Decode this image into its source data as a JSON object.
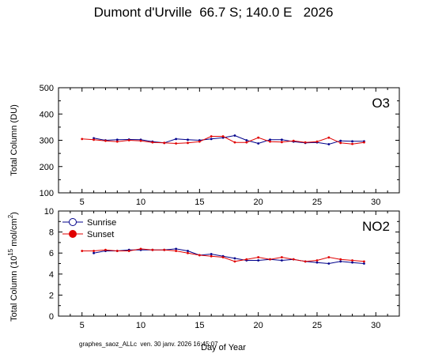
{
  "title": "Dumont d'Urville  66.7 S; 140.0 E   2026",
  "footer": "graphes_saoz_ALLc  ven. 30 janv. 2026 16:45:07",
  "colors": {
    "sunrise": "#00008b",
    "sunset": "#e00000"
  },
  "chart_data": [
    {
      "type": "line",
      "panel_label": "O3",
      "ylabel": "Total Column  (DU)",
      "xlabel": "",
      "xlim": [
        3,
        32
      ],
      "ylim": [
        100,
        500
      ],
      "xticks": [
        5,
        10,
        15,
        20,
        25,
        30
      ],
      "yticks": [
        100,
        200,
        300,
        400,
        500
      ],
      "series": [
        {
          "key": "sunrise",
          "x": [
            6,
            7,
            8,
            9,
            10,
            11,
            12,
            13,
            14,
            15,
            16,
            17,
            18,
            19,
            20,
            21,
            22,
            23,
            24,
            25,
            26,
            27,
            28,
            29
          ],
          "y": [
            308,
            300,
            302,
            303,
            302,
            295,
            290,
            305,
            302,
            300,
            305,
            310,
            318,
            300,
            288,
            302,
            302,
            295,
            290,
            292,
            285,
            298,
            296,
            296
          ]
        },
        {
          "key": "sunset",
          "x": [
            5,
            6,
            7,
            8,
            9,
            10,
            11,
            12,
            13,
            14,
            15,
            16,
            17,
            18,
            19,
            20,
            21,
            22,
            23,
            24,
            25,
            26,
            27,
            28,
            29
          ],
          "y": [
            305,
            302,
            298,
            295,
            300,
            298,
            292,
            290,
            288,
            290,
            295,
            315,
            315,
            292,
            292,
            310,
            295,
            293,
            298,
            292,
            295,
            310,
            290,
            286,
            292
          ]
        }
      ]
    },
    {
      "type": "line",
      "panel_label": "NO2",
      "ylabel_main": "Total Column (10",
      "ylabel_sup1": "15",
      "ylabel_mid": " mol/cm",
      "ylabel_sup2": "2",
      "ylabel_end": ")",
      "xlabel": "Day of Year",
      "xlim": [
        3,
        32
      ],
      "ylim": [
        0,
        10
      ],
      "xticks": [
        5,
        10,
        15,
        20,
        25,
        30
      ],
      "yticks": [
        0,
        2,
        4,
        6,
        8,
        10
      ],
      "legend": {
        "position": "top-left",
        "entries": [
          {
            "key": "sunrise",
            "label": "Sunrise",
            "marker": "open-circle"
          },
          {
            "key": "sunset",
            "label": "Sunset",
            "marker": "filled-circle"
          }
        ]
      },
      "series": [
        {
          "key": "sunrise",
          "name": "Sunrise",
          "x": [
            6,
            7,
            8,
            9,
            10,
            11,
            12,
            13,
            14,
            15,
            16,
            17,
            18,
            19,
            20,
            21,
            22,
            23,
            24,
            25,
            26,
            27,
            28,
            29
          ],
          "y": [
            6.0,
            6.2,
            6.2,
            6.3,
            6.3,
            6.3,
            6.3,
            6.4,
            6.2,
            5.8,
            5.9,
            5.7,
            5.5,
            5.3,
            5.3,
            5.4,
            5.3,
            5.4,
            5.2,
            5.1,
            5.0,
            5.2,
            5.1,
            5.0
          ]
        },
        {
          "key": "sunset",
          "name": "Sunset",
          "x": [
            5,
            6,
            7,
            8,
            9,
            10,
            11,
            12,
            13,
            14,
            15,
            16,
            17,
            18,
            19,
            20,
            21,
            22,
            23,
            24,
            25,
            26,
            27,
            28,
            29
          ],
          "y": [
            6.2,
            6.2,
            6.3,
            6.2,
            6.2,
            6.4,
            6.3,
            6.3,
            6.2,
            6.0,
            5.8,
            5.7,
            5.6,
            5.2,
            5.4,
            5.6,
            5.4,
            5.6,
            5.4,
            5.2,
            5.3,
            5.6,
            5.4,
            5.3,
            5.2
          ]
        }
      ]
    }
  ]
}
